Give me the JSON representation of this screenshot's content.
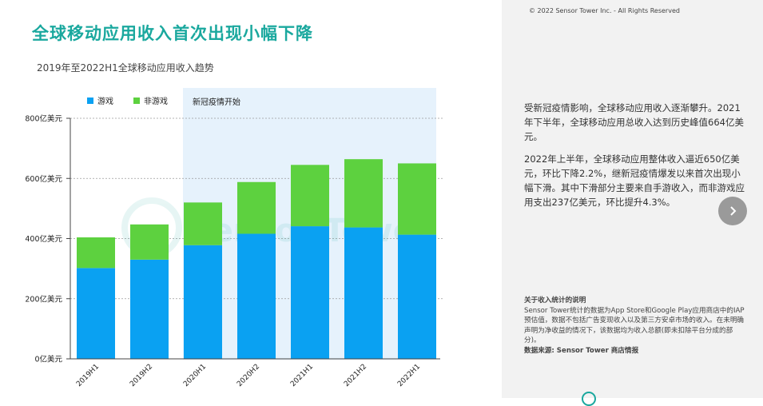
{
  "header": {
    "title": "全球移动应用收入首次出现小幅下降",
    "subtitle": "2019年至2022H1全球移动应用收入趋势"
  },
  "side": {
    "copyright": "© 2022 Sensor Tower Inc. - All Rights Reserved",
    "paragraph1": "受新冠疫情影响，全球移动应用收入逐渐攀升。2021年下半年，全球移动应用总收入达到历史峰值664亿美元。",
    "paragraph2": "2022年上半年，全球移动应用整体收入逼近650亿美元，环比下降2.2%，继新冠疫情爆发以来首次出现小幅下滑。其中下滑部分主要来自手游收入，而非游戏应用支出237亿美元，环比提升4.3%。",
    "note_title": "关于收入统计的说明",
    "note_body": "Sensor Tower统计的数据为App Store和Google Play应用商店中的IAP预估值，数据不包括广告变现收入以及第三方安卓市场的收入。在未明确声明为净收益的情况下，该数据均为收入总额(即未扣除平台分成的部分)。",
    "note_source": "数据来源: Sensor Tower 商店情报"
  },
  "chart_data": {
    "type": "bar",
    "stacked": true,
    "categories": [
      "2019H1",
      "2019H2",
      "2020H1",
      "2020H2",
      "2021H1",
      "2021H2",
      "2022H1"
    ],
    "series": [
      {
        "name": "游戏",
        "color": "#0aa1f2",
        "values": [
          302,
          330,
          378,
          416,
          441,
          437,
          413
        ]
      },
      {
        "name": "非游戏",
        "color": "#5dd13f",
        "values": [
          102,
          117,
          142,
          172,
          204,
          227,
          237
        ]
      }
    ],
    "ylim": [
      0,
      800
    ],
    "y_ticks": [
      {
        "value": 0,
        "label": "0亿美元"
      },
      {
        "value": 200,
        "label": "200亿美元"
      },
      {
        "value": 400,
        "label": "400亿美元"
      },
      {
        "value": 600,
        "label": "600亿美元"
      },
      {
        "value": 800,
        "label": "800亿美元"
      }
    ],
    "grid": true,
    "legend_position": "top-left",
    "annotation": "新冠疫情开始",
    "watermark": "Sensor Tower",
    "colors": {
      "highlight": "#e6f2fc",
      "grid": "#9a9a9a",
      "axis": "#444444"
    }
  }
}
